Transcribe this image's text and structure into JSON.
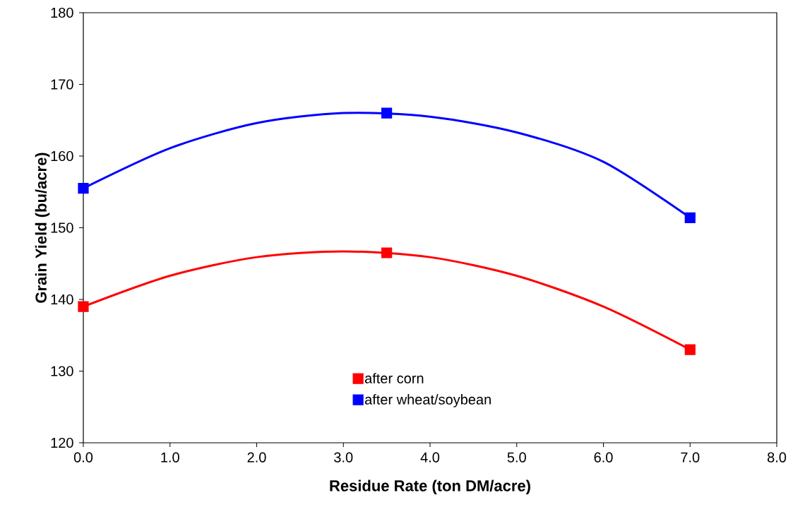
{
  "chart_data": {
    "type": "scatter",
    "xlabel": "Residue Rate (ton DM/acre)",
    "ylabel": "Grain Yield (bu/acre)",
    "xlim": [
      0,
      8
    ],
    "ylim": [
      120,
      180
    ],
    "xticks": [
      {
        "value": 0,
        "label": "0.0"
      },
      {
        "value": 1,
        "label": "1.0"
      },
      {
        "value": 2,
        "label": "2.0"
      },
      {
        "value": 3,
        "label": "3.0"
      },
      {
        "value": 4,
        "label": "4.0"
      },
      {
        "value": 5,
        "label": "5.0"
      },
      {
        "value": 6,
        "label": "6.0"
      },
      {
        "value": 7,
        "label": "7.0"
      },
      {
        "value": 8,
        "label": "8.0"
      }
    ],
    "yticks": [
      120,
      130,
      140,
      150,
      160,
      170,
      180
    ],
    "grid": false,
    "legend": "bottom",
    "series": [
      {
        "name": "after corn",
        "color": "#ff0000",
        "marker": "square",
        "x": [
          0,
          3.5,
          7
        ],
        "values": [
          139,
          146.5,
          133
        ]
      },
      {
        "name": "after wheat/soybean",
        "color": "#0000ff",
        "marker": "square",
        "x": [
          0,
          3.5,
          7
        ],
        "values": [
          155.5,
          166,
          151.4
        ]
      },
      {
        "color": "#ff0000",
        "type": "line",
        "marker": "none",
        "x": [
          0,
          1,
          2,
          3,
          4,
          5,
          6,
          7
        ],
        "values": [
          139,
          143.3,
          145.9,
          146.7,
          145.9,
          143.3,
          139.0,
          133
        ]
      },
      {
        "color": "#0000ff",
        "type": "line",
        "marker": "none",
        "x": [
          0,
          1,
          2,
          3,
          4,
          5,
          6,
          7
        ],
        "values": [
          155.5,
          161.1,
          164.6,
          166.0,
          165.5,
          163.3,
          159.2,
          151.4
        ]
      }
    ]
  }
}
